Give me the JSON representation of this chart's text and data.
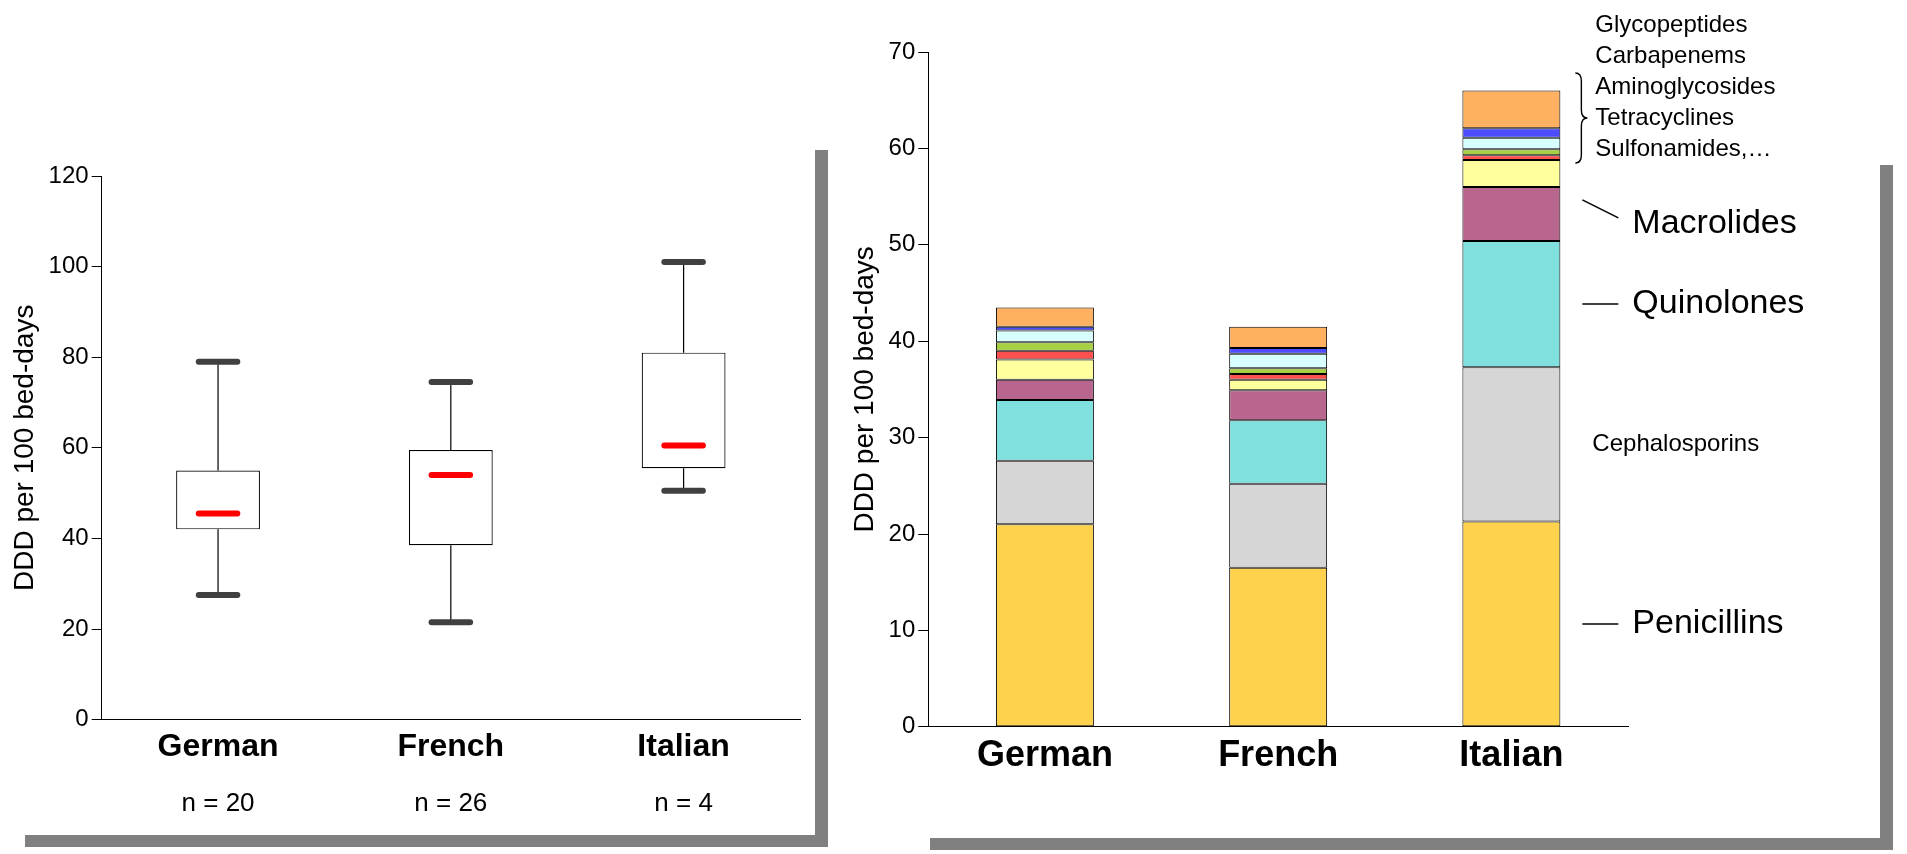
{
  "chart_data": [
    {
      "type": "box",
      "ylabel": "DDD per 100 bed-days",
      "categories": [
        "German",
        "French",
        "Italian"
      ],
      "boxes": [
        {
          "low": 27.5,
          "q1": 42,
          "median": 45.5,
          "q3": 55,
          "high": 79
        },
        {
          "low": 21.5,
          "q1": 38.5,
          "median": 54,
          "q3": 59.5,
          "high": 74.5
        },
        {
          "low": 50.5,
          "q1": 55.5,
          "median": 60.5,
          "q3": 81,
          "high": 101
        }
      ],
      "ylim": [
        0,
        120
      ],
      "yticks": [
        0,
        20,
        40,
        60,
        80,
        100,
        120
      ],
      "grid": false,
      "annotations": [
        "n = 20",
        "n = 26",
        "n = 4"
      ]
    },
    {
      "type": "bar",
      "stacked": true,
      "ylabel": "DDD per 100 bed-days",
      "categories": [
        "German",
        "French",
        "Italian"
      ],
      "series": [
        {
          "name": "Penicillins",
          "color": "#ffd24d",
          "values": [
            21,
            16.5,
            21.3
          ]
        },
        {
          "name": "Cephalosporins",
          "color": "#d6d6d6",
          "values": [
            6.6,
            8.7,
            16
          ]
        },
        {
          "name": "Quinolones",
          "color": "#7fe0de",
          "values": [
            6.3,
            6.6,
            13.1
          ]
        },
        {
          "name": "Macrolides",
          "color": "#b8668e",
          "values": [
            2.1,
            3.1,
            5.6
          ]
        },
        {
          "color": "#ffff9e",
          "values": [
            2.1,
            1.1,
            2.8
          ]
        },
        {
          "color": "#ff5050",
          "values": [
            0.9,
            0.6,
            0.5
          ]
        },
        {
          "color": "#a8d045",
          "values": [
            0.9,
            0.6,
            0.6
          ]
        },
        {
          "color": "#d8ffff",
          "values": [
            1.2,
            1.5,
            1.2
          ]
        },
        {
          "color": "#4d4dff",
          "values": [
            0.4,
            0.6,
            1.0
          ]
        },
        {
          "color": "#ffb060",
          "values": [
            2.0,
            2.2,
            3.9
          ]
        }
      ],
      "ylim": [
        0,
        70
      ],
      "yticks": [
        0,
        10,
        20,
        30,
        40,
        50,
        60,
        70
      ],
      "grid": false,
      "annotations": [
        "Glycopeptides",
        "Carbapenems",
        "Aminoglycosides",
        "Tetracyclines",
        "Sulfonamides,…"
      ]
    }
  ]
}
